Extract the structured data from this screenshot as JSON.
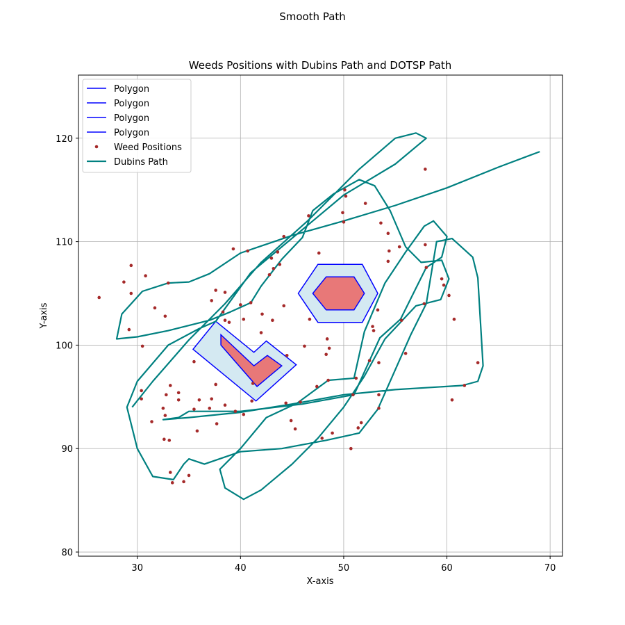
{
  "figure": {
    "suptitle": "Smooth Path"
  },
  "chart_data": {
    "type": "scatter",
    "title": "Weeds Positions with Dubins Path and DOTSP Path",
    "xlabel": "X-axis",
    "ylabel": "Y-axis",
    "xlim": [
      24.3,
      71.2
    ],
    "ylim": [
      79.6,
      126.1
    ],
    "xticks": [
      30,
      40,
      50,
      60,
      70
    ],
    "yticks": [
      80,
      90,
      100,
      110,
      120
    ],
    "grid": true,
    "legend_position": "upper left",
    "legend": [
      {
        "label": "Polygon",
        "kind": "line",
        "color": "#0000ff"
      },
      {
        "label": "Polygon",
        "kind": "line",
        "color": "#0000ff"
      },
      {
        "label": "Polygon",
        "kind": "line",
        "color": "#0000ff"
      },
      {
        "label": "Polygon",
        "kind": "line",
        "color": "#0000ff"
      },
      {
        "label": "Weed Positions",
        "kind": "point",
        "color": "#a52a2a"
      },
      {
        "label": "Dubins Path",
        "kind": "thickline",
        "color": "#008080"
      }
    ],
    "colors": {
      "polygon_edge": "#0000ff",
      "buffer_fill": "#d4e9f2",
      "inner_fill": "#e87878",
      "weed": "#a52a2a",
      "path": "#008080",
      "grid": "#b0b0b0"
    },
    "polygons": [
      {
        "role": "buffer",
        "points": [
          [
            37.6,
            102.3
          ],
          [
            41.3,
            99.3
          ],
          [
            42.5,
            100.4
          ],
          [
            45.4,
            98.1
          ],
          [
            41.5,
            94.6
          ],
          [
            35.4,
            99.6
          ]
        ]
      },
      {
        "role": "inner",
        "points": [
          [
            38.1,
            101.0
          ],
          [
            41.3,
            98.0
          ],
          [
            42.6,
            99.0
          ],
          [
            44.0,
            98.0
          ],
          [
            41.6,
            96.0
          ],
          [
            38.1,
            100.0
          ]
        ]
      },
      {
        "role": "buffer",
        "points": [
          [
            47.5,
            107.8
          ],
          [
            51.8,
            107.8
          ],
          [
            53.3,
            105.0
          ],
          [
            51.8,
            102.2
          ],
          [
            47.5,
            102.2
          ],
          [
            45.6,
            105.0
          ]
        ]
      },
      {
        "role": "inner",
        "points": [
          [
            48.3,
            106.6
          ],
          [
            51.0,
            106.6
          ],
          [
            52.0,
            105.0
          ],
          [
            51.0,
            103.4
          ],
          [
            48.3,
            103.4
          ],
          [
            47.0,
            105.0
          ]
        ]
      }
    ],
    "weeds": [
      [
        26.3,
        104.6
      ],
      [
        28.7,
        106.1
      ],
      [
        29.4,
        107.7
      ],
      [
        30.8,
        106.7
      ],
      [
        29.4,
        105.0
      ],
      [
        29.2,
        101.5
      ],
      [
        30.5,
        99.9
      ],
      [
        31.7,
        103.6
      ],
      [
        32.7,
        102.8
      ],
      [
        33.0,
        106.0
      ],
      [
        30.4,
        95.6
      ],
      [
        30.4,
        94.8
      ],
      [
        32.5,
        93.9
      ],
      [
        32.8,
        95.2
      ],
      [
        33.2,
        96.1
      ],
      [
        34.0,
        94.7
      ],
      [
        34.0,
        95.4
      ],
      [
        32.7,
        93.2
      ],
      [
        31.4,
        92.6
      ],
      [
        32.6,
        90.9
      ],
      [
        33.1,
        90.8
      ],
      [
        33.2,
        87.7
      ],
      [
        33.4,
        86.7
      ],
      [
        34.5,
        86.8
      ],
      [
        35.0,
        87.4
      ],
      [
        35.5,
        93.8
      ],
      [
        35.8,
        91.7
      ],
      [
        36.0,
        94.7
      ],
      [
        37.0,
        93.9
      ],
      [
        37.2,
        94.8
      ],
      [
        37.7,
        92.4
      ],
      [
        37.6,
        96.2
      ],
      [
        38.5,
        94.2
      ],
      [
        35.5,
        98.4
      ],
      [
        37.2,
        104.3
      ],
      [
        37.6,
        105.3
      ],
      [
        38.5,
        105.1
      ],
      [
        38.3,
        103.2
      ],
      [
        38.5,
        102.4
      ],
      [
        38.9,
        102.2
      ],
      [
        39.5,
        93.6
      ],
      [
        40.3,
        93.3
      ],
      [
        40.3,
        102.5
      ],
      [
        40.0,
        103.9
      ],
      [
        40.7,
        109.1
      ],
      [
        41.0,
        104.1
      ],
      [
        41.1,
        94.6
      ],
      [
        42.1,
        103.0
      ],
      [
        42.8,
        106.8
      ],
      [
        43.1,
        102.4
      ],
      [
        43.0,
        108.4
      ],
      [
        43.2,
        107.4
      ],
      [
        43.8,
        107.8
      ],
      [
        44.2,
        110.5
      ],
      [
        44.2,
        103.8
      ],
      [
        44.5,
        99.0
      ],
      [
        44.9,
        92.7
      ],
      [
        45.3,
        91.9
      ],
      [
        45.8,
        94.5
      ],
      [
        46.2,
        99.9
      ],
      [
        46.7,
        102.5
      ],
      [
        47.6,
        108.9
      ],
      [
        47.9,
        91.0
      ],
      [
        48.3,
        99.1
      ],
      [
        48.4,
        100.6
      ],
      [
        48.5,
        96.6
      ],
      [
        48.6,
        99.7
      ],
      [
        48.9,
        91.5
      ],
      [
        49.9,
        112.8
      ],
      [
        50.0,
        111.9
      ],
      [
        50.2,
        114.4
      ],
      [
        50.7,
        90.0
      ],
      [
        50.9,
        95.2
      ],
      [
        51.2,
        96.8
      ],
      [
        51.4,
        92.0
      ],
      [
        51.7,
        92.5
      ],
      [
        52.5,
        98.5
      ],
      [
        52.8,
        101.8
      ],
      [
        52.9,
        101.4
      ],
      [
        53.4,
        98.3
      ],
      [
        53.4,
        95.2
      ],
      [
        53.4,
        93.9
      ],
      [
        53.6,
        111.8
      ],
      [
        54.3,
        110.8
      ],
      [
        54.3,
        108.1
      ],
      [
        54.4,
        109.1
      ],
      [
        55.4,
        109.5
      ],
      [
        55.6,
        102.4
      ],
      [
        57.8,
        104.0
      ],
      [
        57.9,
        109.7
      ],
      [
        58.0,
        107.5
      ],
      [
        59.5,
        106.4
      ],
      [
        59.7,
        105.8
      ],
      [
        60.2,
        104.8
      ],
      [
        60.7,
        102.5
      ],
      [
        60.5,
        94.7
      ],
      [
        61.7,
        96.1
      ],
      [
        63.0,
        98.3
      ],
      [
        52.1,
        113.7
      ],
      [
        50.1,
        115.0
      ],
      [
        53.3,
        103.4
      ],
      [
        57.9,
        117.0
      ],
      [
        42.0,
        101.2
      ],
      [
        39.3,
        109.3
      ],
      [
        43.6,
        109.0
      ],
      [
        41.2,
        96.3
      ],
      [
        44.4,
        94.4
      ],
      [
        47.4,
        96.0
      ],
      [
        56.0,
        99.2
      ],
      [
        46.6,
        112.5
      ]
    ],
    "dubins_path": [
      [
        69.0,
        118.7
      ],
      [
        65.0,
        117.2
      ],
      [
        60.0,
        115.2
      ],
      [
        55.0,
        113.5
      ],
      [
        50.0,
        112.0
      ],
      [
        45.0,
        110.6
      ],
      [
        40.0,
        108.9
      ],
      [
        37.0,
        106.9
      ],
      [
        35.0,
        106.1
      ],
      [
        33.0,
        106.0
      ],
      [
        30.5,
        105.2
      ],
      [
        28.5,
        103.0
      ],
      [
        28.0,
        100.6
      ],
      [
        30.0,
        100.8
      ],
      [
        33.0,
        101.4
      ],
      [
        37.0,
        102.4
      ],
      [
        39.0,
        103.2
      ],
      [
        41.0,
        104.1
      ],
      [
        42.0,
        105.7
      ],
      [
        44.0,
        108.3
      ],
      [
        46.0,
        110.4
      ],
      [
        47.0,
        113.0
      ],
      [
        49.0,
        114.6
      ],
      [
        51.5,
        116.0
      ],
      [
        53.0,
        115.4
      ],
      [
        54.5,
        113.0
      ],
      [
        56.0,
        109.5
      ],
      [
        57.5,
        108.0
      ],
      [
        59.5,
        108.2
      ],
      [
        60.2,
        106.4
      ],
      [
        59.4,
        104.4
      ],
      [
        57.0,
        103.8
      ],
      [
        54.0,
        100.6
      ],
      [
        52.0,
        97.0
      ],
      [
        50.0,
        94.0
      ],
      [
        47.5,
        91.0
      ],
      [
        45.0,
        88.5
      ],
      [
        42.0,
        86.0
      ],
      [
        40.3,
        85.1
      ],
      [
        38.5,
        86.2
      ],
      [
        38.0,
        88.0
      ],
      [
        40.0,
        90.0
      ],
      [
        42.5,
        93.0
      ],
      [
        45.5,
        94.4
      ],
      [
        48.5,
        96.6
      ],
      [
        51.0,
        96.8
      ],
      [
        52.0,
        101.3
      ],
      [
        54.0,
        106.0
      ],
      [
        56.0,
        109.0
      ],
      [
        57.8,
        111.5
      ],
      [
        58.7,
        112.0
      ],
      [
        60.0,
        110.5
      ],
      [
        59.5,
        108.5
      ],
      [
        58.0,
        107.5
      ],
      [
        55.5,
        102.5
      ],
      [
        53.5,
        100.7
      ],
      [
        51.0,
        95.2
      ],
      [
        46.0,
        94.3
      ],
      [
        40.0,
        93.6
      ],
      [
        35.0,
        93.6
      ],
      [
        34.0,
        93.0
      ],
      [
        32.5,
        92.8
      ],
      [
        35.0,
        93.0
      ],
      [
        40.0,
        93.5
      ],
      [
        45.0,
        94.3
      ],
      [
        50.0,
        95.2
      ],
      [
        55.0,
        95.7
      ],
      [
        61.5,
        96.1
      ],
      [
        63.0,
        96.5
      ],
      [
        63.5,
        98.0
      ],
      [
        63.0,
        106.5
      ],
      [
        62.5,
        108.5
      ],
      [
        60.5,
        110.3
      ],
      [
        59.0,
        110.0
      ],
      [
        58.0,
        104.0
      ],
      [
        56.5,
        101.0
      ],
      [
        53.3,
        93.8
      ],
      [
        51.5,
        91.5
      ],
      [
        48.3,
        90.8
      ],
      [
        44.0,
        90.0
      ],
      [
        40.0,
        89.7
      ],
      [
        36.5,
        88.5
      ],
      [
        35.0,
        89.0
      ],
      [
        34.5,
        88.5
      ],
      [
        33.5,
        87.0
      ],
      [
        31.5,
        87.3
      ],
      [
        30.0,
        90.0
      ],
      [
        29.0,
        94.0
      ],
      [
        30.0,
        96.5
      ],
      [
        33.0,
        100.0
      ],
      [
        36.0,
        101.6
      ],
      [
        37.6,
        102.3
      ],
      [
        41.0,
        107.0
      ],
      [
        44.0,
        109.5
      ],
      [
        47.0,
        112.0
      ],
      [
        50.0,
        114.5
      ],
      [
        55.0,
        117.5
      ],
      [
        58.0,
        120.0
      ],
      [
        57.0,
        120.5
      ],
      [
        55.0,
        120.0
      ],
      [
        51.5,
        117.0
      ],
      [
        48.5,
        114.0
      ],
      [
        46.5,
        112.0
      ],
      [
        42.0,
        108.0
      ],
      [
        38.5,
        104.0
      ],
      [
        35.0,
        100.5
      ],
      [
        31.5,
        96.5
      ],
      [
        29.5,
        94.0
      ]
    ]
  }
}
